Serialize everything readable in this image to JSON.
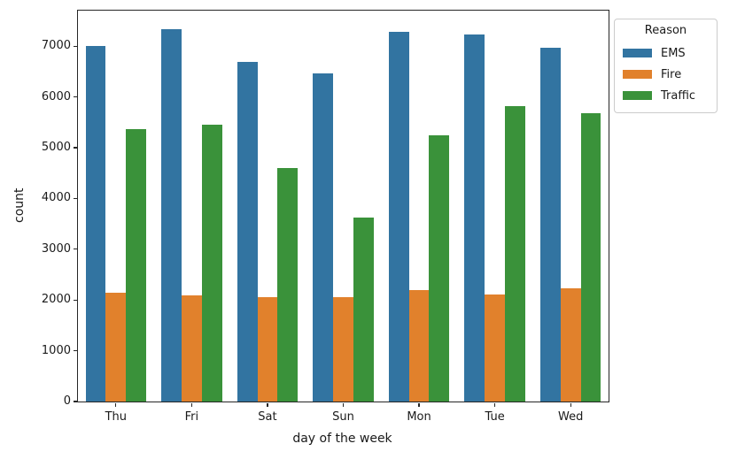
{
  "figure": {
    "background": "#ffffff",
    "spine_color": "#262626",
    "text_color": "#1a1a1a"
  },
  "chart_data": {
    "type": "bar",
    "title": "",
    "xlabel": "day of the week",
    "ylabel": "count",
    "categories": [
      "Thu",
      "Fri",
      "Sat",
      "Sun",
      "Mon",
      "Tue",
      "Wed"
    ],
    "series": [
      {
        "name": "EMS",
        "color": "#3274a1",
        "values": [
          6998,
          7327,
          6694,
          6467,
          7276,
          7234,
          6966
        ]
      },
      {
        "name": "Fire",
        "color": "#e1812c",
        "values": [
          2139,
          2096,
          2056,
          2064,
          2201,
          2113,
          2224
        ]
      },
      {
        "name": "Traffic",
        "color": "#3a923a",
        "values": [
          5363,
          5452,
          4602,
          3620,
          5243,
          5824,
          5680
        ]
      }
    ],
    "ylim": [
      0,
      7700
    ],
    "yticks": [
      0,
      1000,
      2000,
      3000,
      4000,
      5000,
      6000,
      7000
    ],
    "grid": false,
    "legend": {
      "title": "Reason",
      "position": "upper-right-outside"
    }
  }
}
